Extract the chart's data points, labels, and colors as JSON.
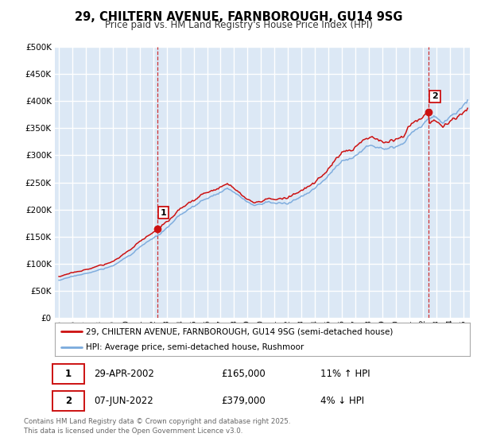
{
  "title": "29, CHILTERN AVENUE, FARNBOROUGH, GU14 9SG",
  "subtitle": "Price paid vs. HM Land Registry's House Price Index (HPI)",
  "ylim": [
    0,
    500000
  ],
  "yticks": [
    0,
    50000,
    100000,
    150000,
    200000,
    250000,
    300000,
    350000,
    400000,
    450000,
    500000
  ],
  "xlim_start": 1994.7,
  "xlim_end": 2025.5,
  "bg_color": "#dce8f5",
  "grid_color": "#ffffff",
  "line1_color": "#cc1111",
  "line2_color": "#7aaadd",
  "marker_color": "#cc1111",
  "vline_color": "#cc1111",
  "legend_label1": "29, CHILTERN AVENUE, FARNBOROUGH, GU14 9SG (semi-detached house)",
  "legend_label2": "HPI: Average price, semi-detached house, Rushmoor",
  "annotation1_date": "29-APR-2002",
  "annotation1_price": "£165,000",
  "annotation1_hpi": "11% ↑ HPI",
  "annotation1_year": 2002.29,
  "annotation1_value": 165000,
  "annotation2_date": "07-JUN-2022",
  "annotation2_price": "£379,000",
  "annotation2_hpi": "4% ↓ HPI",
  "annotation2_year": 2022.42,
  "annotation2_value": 379000,
  "footer": "Contains HM Land Registry data © Crown copyright and database right 2025.\nThis data is licensed under the Open Government Licence v3.0.",
  "xticks": [
    1995,
    1996,
    1997,
    1998,
    1999,
    2000,
    2001,
    2002,
    2003,
    2004,
    2005,
    2006,
    2007,
    2008,
    2009,
    2010,
    2011,
    2012,
    2013,
    2014,
    2015,
    2016,
    2017,
    2018,
    2019,
    2020,
    2021,
    2022,
    2023,
    2024,
    2025
  ]
}
